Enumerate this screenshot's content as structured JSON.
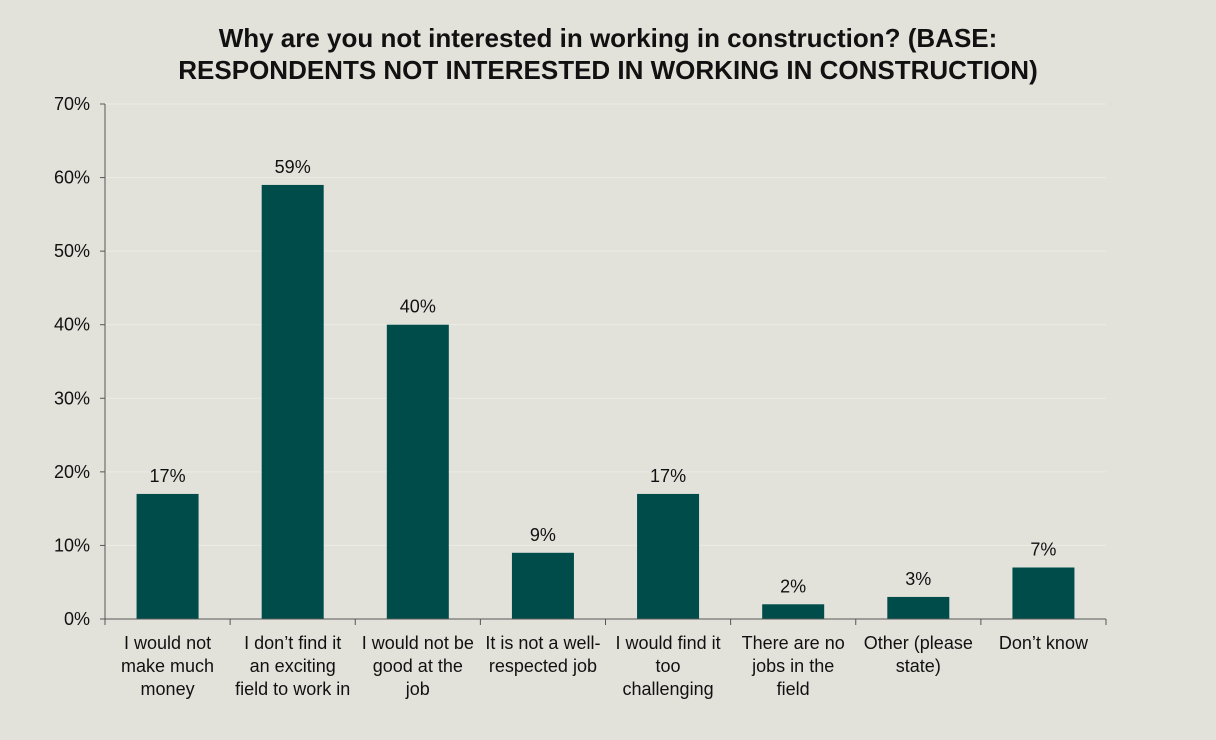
{
  "chart_data": {
    "type": "bar",
    "title_lines": [
      "Why are you not interested in working in construction? (BASE:",
      "RESPONDENTS NOT INTERESTED IN WORKING IN CONSTRUCTION)"
    ],
    "categories": [
      [
        "I would not",
        "make much",
        "money"
      ],
      [
        "I don’t find it",
        "an exciting",
        "field to work in"
      ],
      [
        "I would not be",
        "good at the",
        "job"
      ],
      [
        "It is not a well-",
        "respected job"
      ],
      [
        "I would find it",
        "too",
        "challenging"
      ],
      [
        "There are no",
        "jobs in the",
        "field"
      ],
      [
        "Other (please",
        "state)"
      ],
      [
        "Don’t know"
      ]
    ],
    "values": [
      17,
      59,
      40,
      9,
      17,
      2,
      3,
      7
    ],
    "data_labels": [
      "17%",
      "59%",
      "40%",
      "9%",
      "17%",
      "2%",
      "3%",
      "7%"
    ],
    "ylim": [
      0,
      70
    ],
    "yticks": [
      0,
      10,
      20,
      30,
      40,
      50,
      60,
      70
    ],
    "ytick_labels": [
      "0%",
      "10%",
      "20%",
      "30%",
      "40%",
      "50%",
      "60%",
      "70%"
    ],
    "xlabel": "",
    "ylabel": "",
    "grid": true,
    "legend": false,
    "bar_color": "#004c4a",
    "grid_color": "#ecece6",
    "axis_color": "#555555"
  }
}
